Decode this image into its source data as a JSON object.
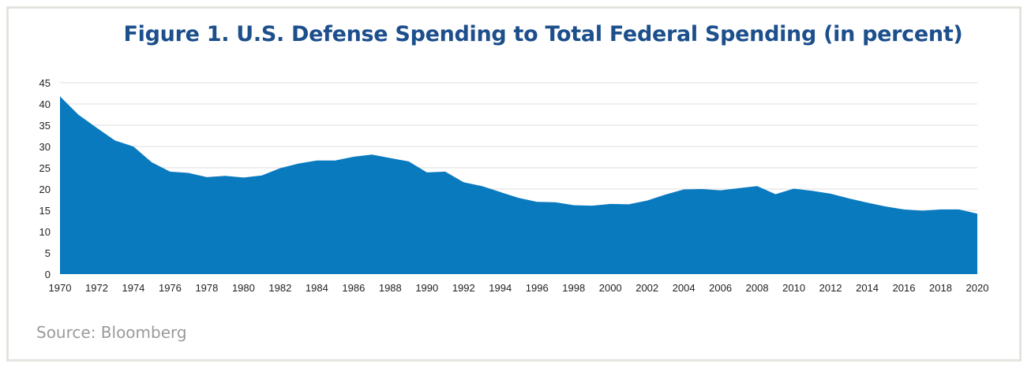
{
  "chart_data": {
    "type": "area",
    "title": "Figure 1. U.S. Defense Spending to Total Federal Spending (in percent)",
    "source": "Source: Bloomberg",
    "xlabel": "",
    "ylabel": "",
    "xlim": [
      1970,
      2020
    ],
    "ylim": [
      0,
      45
    ],
    "yticks": [
      0,
      5,
      10,
      15,
      20,
      25,
      30,
      35,
      40,
      45
    ],
    "xticks": [
      1970,
      1972,
      1974,
      1976,
      1978,
      1980,
      1982,
      1984,
      1986,
      1988,
      1990,
      1992,
      1994,
      1996,
      1998,
      2000,
      2002,
      2004,
      2006,
      2008,
      2010,
      2012,
      2014,
      2016,
      2018,
      2020
    ],
    "grid": true,
    "fill_color": "#0a7abf",
    "title_color": "#1c4f8c",
    "x": [
      1970,
      1971,
      1972,
      1973,
      1974,
      1975,
      1976,
      1977,
      1978,
      1979,
      1980,
      1981,
      1982,
      1983,
      1984,
      1985,
      1986,
      1987,
      1988,
      1989,
      1990,
      1991,
      1992,
      1993,
      1994,
      1995,
      1996,
      1997,
      1998,
      1999,
      2000,
      2001,
      2002,
      2003,
      2004,
      2005,
      2006,
      2007,
      2008,
      2009,
      2010,
      2011,
      2012,
      2013,
      2014,
      2015,
      2016,
      2017,
      2018,
      2019,
      2020
    ],
    "values": [
      41.8,
      37.5,
      34.4,
      31.4,
      30.0,
      26.3,
      24.1,
      23.8,
      22.8,
      23.1,
      22.7,
      23.2,
      24.9,
      26.0,
      26.7,
      26.7,
      27.6,
      28.1,
      27.3,
      26.5,
      23.9,
      24.1,
      21.6,
      20.7,
      19.3,
      17.9,
      17.0,
      16.9,
      16.2,
      16.1,
      16.5,
      16.4,
      17.3,
      18.7,
      19.9,
      20.0,
      19.7,
      20.2,
      20.7,
      18.8,
      20.1,
      19.6,
      18.9,
      17.8,
      16.8,
      15.9,
      15.2,
      14.9,
      15.2,
      15.2,
      14.2
    ]
  }
}
